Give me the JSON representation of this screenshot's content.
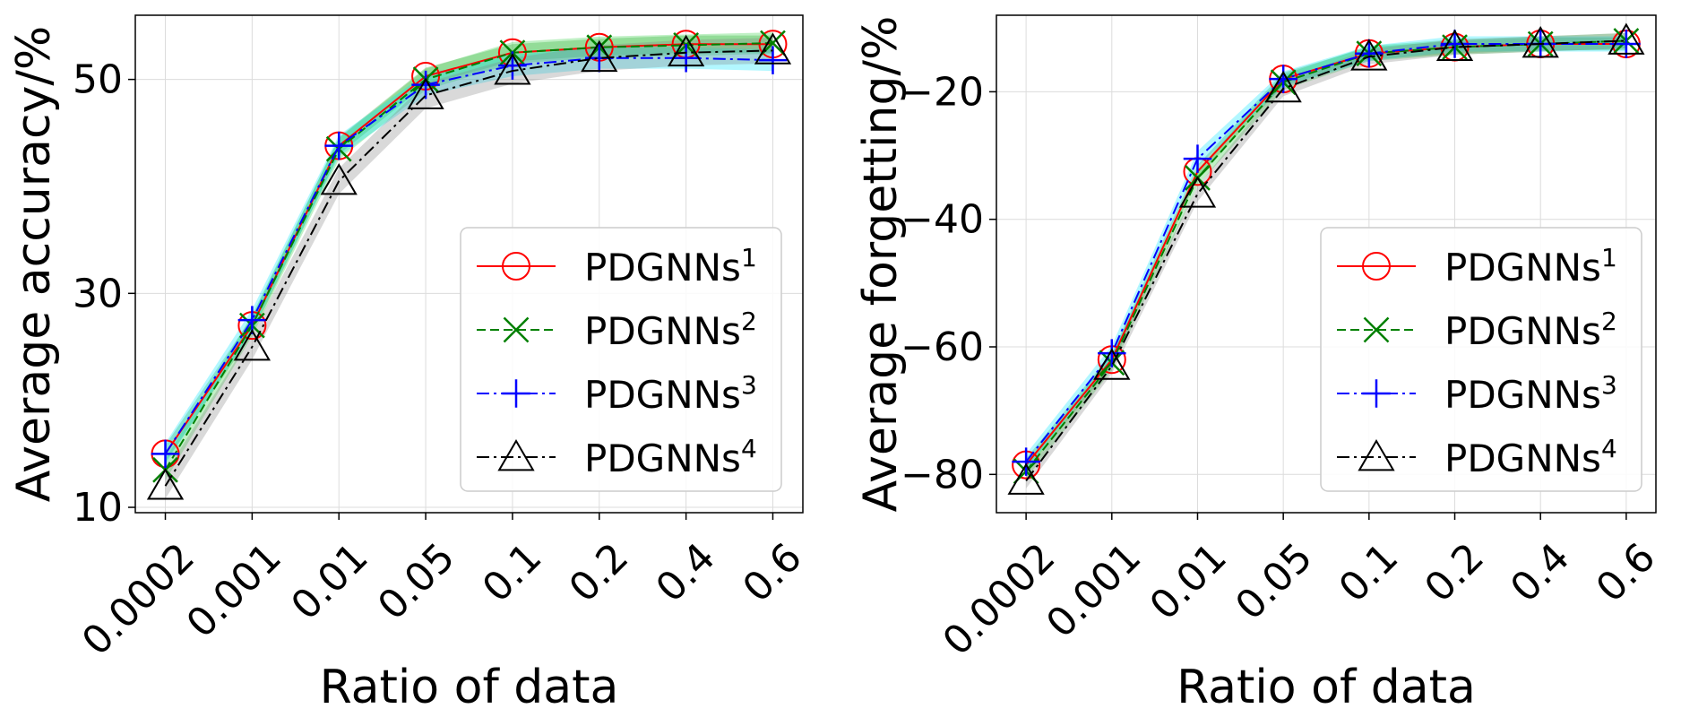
{
  "chart_data": [
    {
      "type": "line",
      "xlabel": "Ratio of data",
      "ylabel": "Average accuracy/%",
      "categories": [
        "0.0002",
        "0.001",
        "0.01",
        "0.05",
        "0.1",
        "0.2",
        "0.4",
        "0.6"
      ],
      "yticks": [
        10,
        30,
        50
      ],
      "ylim": [
        9.5,
        56
      ],
      "grid": true,
      "legend_position": "lower-right",
      "series": [
        {
          "name": "PDGNNs",
          "sup": "1",
          "color": "#ff0000",
          "dash": "solid",
          "marker": "circle",
          "values": [
            15.0,
            27.0,
            43.8,
            50.3,
            52.5,
            53.0,
            53.3,
            53.3
          ],
          "band": 0.8,
          "band_color": "#2ca02c"
        },
        {
          "name": "PDGNNs",
          "sup": "2",
          "color": "#008000",
          "dash": "dashed",
          "marker": "x",
          "values": [
            13.5,
            27.0,
            43.5,
            50.0,
            52.5,
            53.0,
            53.2,
            53.4
          ],
          "band": 1.0,
          "band_color": "#2ecc40"
        },
        {
          "name": "PDGNNs",
          "sup": "3",
          "color": "#0000ff",
          "dash": "dashdot",
          "marker": "plus",
          "values": [
            15.0,
            27.5,
            43.8,
            49.5,
            51.3,
            52.0,
            52.0,
            51.8
          ],
          "band": 1.0,
          "band_color": "#00e5ff"
        },
        {
          "name": "PDGNNs",
          "sup": "4",
          "color": "#000000",
          "dash": "dashdot",
          "marker": "triangle",
          "values": [
            12.0,
            25.0,
            40.5,
            48.5,
            50.8,
            52.0,
            52.5,
            52.7
          ],
          "band": 1.2,
          "band_color": "#808080"
        }
      ]
    },
    {
      "type": "line",
      "xlabel": "Ratio of data",
      "ylabel": "Average forgetting/%",
      "categories": [
        "0.0002",
        "0.001",
        "0.01",
        "0.05",
        "0.1",
        "0.2",
        "0.4",
        "0.6"
      ],
      "yticks": [
        -80,
        -60,
        -40,
        -20
      ],
      "ylim": [
        -86,
        -8
      ],
      "grid": true,
      "legend_position": "lower-right",
      "series": [
        {
          "name": "PDGNNs",
          "sup": "1",
          "color": "#ff0000",
          "dash": "solid",
          "marker": "circle",
          "values": [
            -78.5,
            -62.0,
            -32.5,
            -18.0,
            -14.0,
            -13.0,
            -12.5,
            -12.5
          ],
          "band": 1.0,
          "band_color": "#2ca02c"
        },
        {
          "name": "PDGNNs",
          "sup": "2",
          "color": "#008000",
          "dash": "dashed",
          "marker": "x",
          "values": [
            -79.5,
            -62.5,
            -33.5,
            -18.5,
            -14.0,
            -13.0,
            -12.5,
            -12.0
          ],
          "band": 1.2,
          "band_color": "#2ecc40"
        },
        {
          "name": "PDGNNs",
          "sup": "3",
          "color": "#0000ff",
          "dash": "dashdot",
          "marker": "plus",
          "values": [
            -78.0,
            -61.0,
            -30.5,
            -18.0,
            -14.0,
            -12.5,
            -12.5,
            -12.5
          ],
          "band": 1.2,
          "band_color": "#00e5ff"
        },
        {
          "name": "PDGNNs",
          "sup": "4",
          "color": "#000000",
          "dash": "dashdot",
          "marker": "triangle",
          "values": [
            -81.0,
            -63.0,
            -36.0,
            -19.5,
            -14.5,
            -13.0,
            -12.5,
            -12.0
          ],
          "band": 1.2,
          "band_color": "#808080"
        }
      ]
    }
  ]
}
